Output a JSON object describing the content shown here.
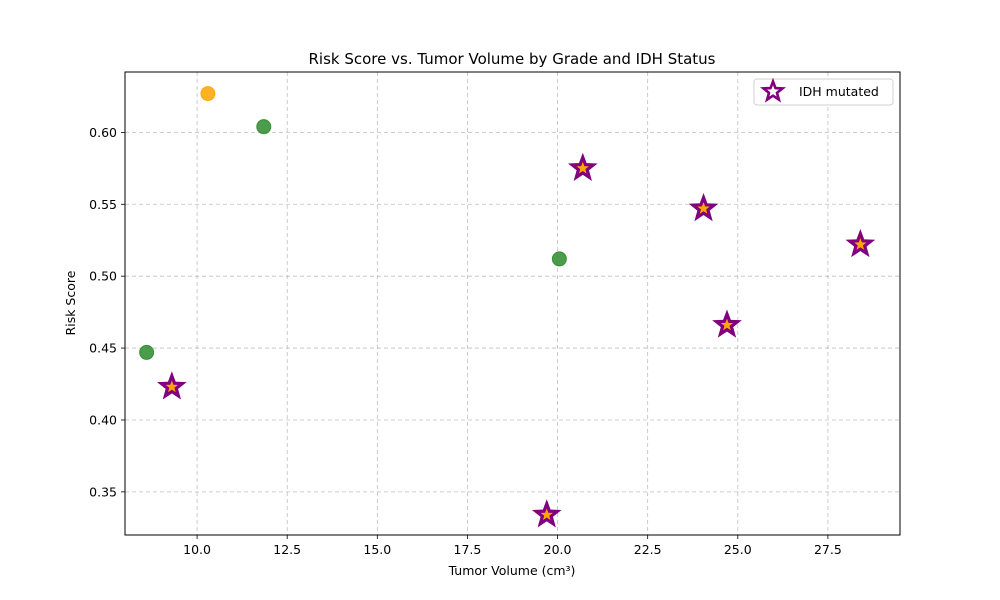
{
  "chart_data": {
    "type": "scatter",
    "title": "Risk Score vs. Tumor Volume by Grade and IDH Status",
    "xlabel": "Tumor Volume (cm³)",
    "ylabel": "Risk Score",
    "xlim": [
      8.0,
      29.5
    ],
    "ylim": [
      0.32,
      0.642
    ],
    "x_ticks": [
      10.0,
      12.5,
      15.0,
      17.5,
      20.0,
      22.5,
      25.0,
      27.5
    ],
    "x_tick_labels": [
      "10.0",
      "12.5",
      "15.0",
      "17.5",
      "20.0",
      "22.5",
      "25.0",
      "27.5"
    ],
    "y_ticks": [
      0.35,
      0.4,
      0.45,
      0.5,
      0.55,
      0.6
    ],
    "y_tick_labels": [
      "0.35",
      "0.40",
      "0.45",
      "0.50",
      "0.55",
      "0.60"
    ],
    "grid": true,
    "legend_position": "top-right",
    "series": [
      {
        "color": "#2e8b2e",
        "marker": "circle",
        "points": [
          {
            "x": 8.6,
            "y": 0.447
          },
          {
            "x": 11.85,
            "y": 0.604
          },
          {
            "x": 20.05,
            "y": 0.512
          }
        ]
      },
      {
        "color": "#ffa500",
        "marker": "circle",
        "points": [
          {
            "x": 10.3,
            "y": 0.627
          }
        ]
      },
      {
        "name": "IDH mutated",
        "color": "#800080",
        "fill": "#ffa500",
        "marker": "star",
        "points": [
          {
            "x": 9.3,
            "y": 0.423
          },
          {
            "x": 19.7,
            "y": 0.334
          },
          {
            "x": 20.7,
            "y": 0.575
          },
          {
            "x": 24.05,
            "y": 0.547
          },
          {
            "x": 24.7,
            "y": 0.466
          },
          {
            "x": 28.4,
            "y": 0.522
          }
        ]
      }
    ]
  }
}
